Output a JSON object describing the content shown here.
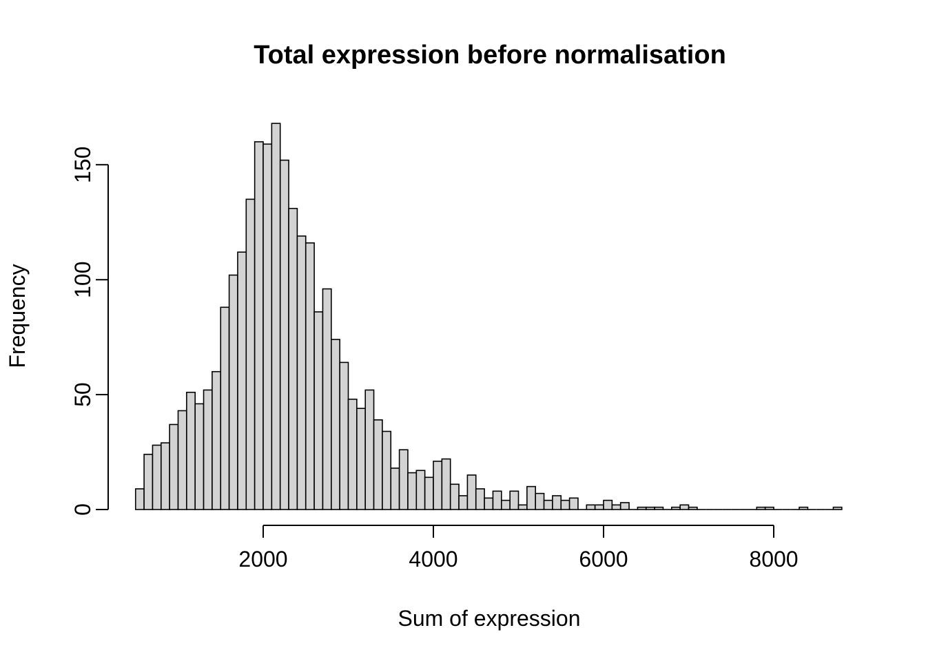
{
  "chart_data": {
    "type": "bar",
    "subtype": "histogram",
    "title": "Total expression before normalisation",
    "xlabel": "Sum of expression",
    "ylabel": "Frequency",
    "bin_start": 500,
    "bin_width": 100,
    "xlim": [
      500,
      8800
    ],
    "ylim": [
      0,
      168
    ],
    "x_ticks": [
      2000,
      4000,
      6000,
      8000
    ],
    "x_tick_labels": [
      "2000",
      "4000",
      "6000",
      "8000"
    ],
    "y_ticks": [
      0,
      50,
      100,
      150
    ],
    "y_tick_labels": [
      "0",
      "50",
      "100",
      "150"
    ],
    "grid": false,
    "legend": false,
    "bar_fill": "#d3d3d3",
    "bar_stroke": "#000000",
    "axis_color": "#000000",
    "counts": [
      9,
      24,
      28,
      29,
      37,
      43,
      51,
      46,
      52,
      60,
      88,
      102,
      112,
      135,
      160,
      159,
      168,
      152,
      131,
      119,
      116,
      86,
      96,
      74,
      64,
      48,
      44,
      52,
      39,
      34,
      18,
      26,
      16,
      17,
      14,
      21,
      22,
      11,
      6,
      15,
      9,
      5,
      8,
      4,
      8,
      2,
      10,
      7,
      4,
      6,
      4,
      5,
      0,
      2,
      2,
      4,
      2,
      3,
      0,
      1,
      1,
      1,
      0,
      1,
      2,
      1,
      0,
      0,
      0,
      0,
      0,
      0,
      0,
      1,
      1,
      0,
      0,
      0,
      1,
      0,
      0,
      0,
      1
    ]
  }
}
